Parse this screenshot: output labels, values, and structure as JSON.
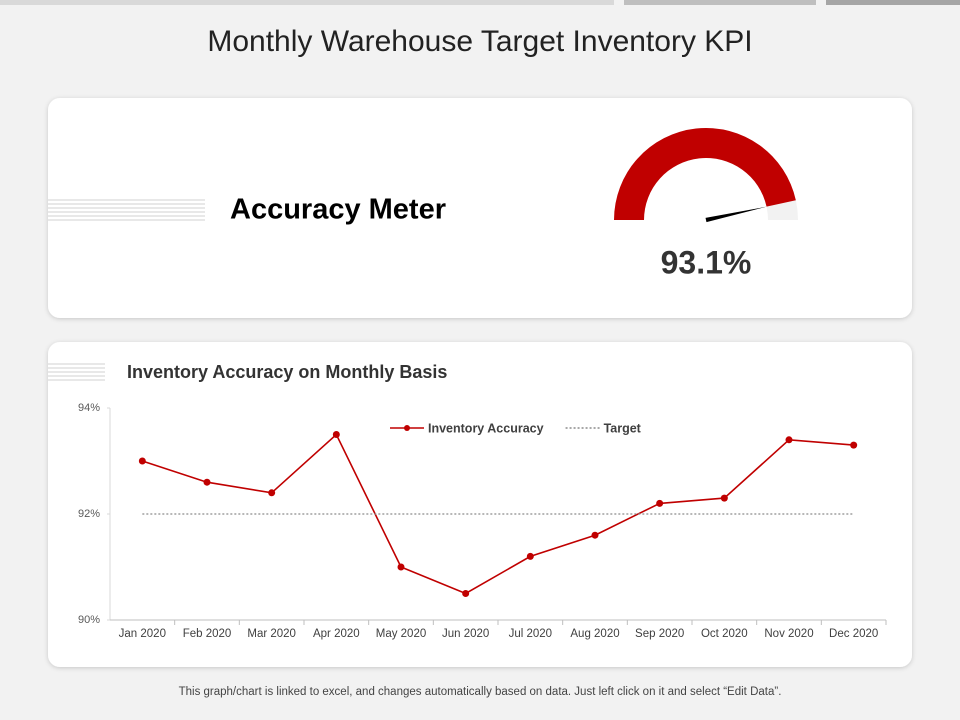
{
  "title": "Monthly Warehouse Target Inventory KPI",
  "footer": "This graph/chart is linked to excel, and changes automatically based on data. Just left click on it and select “Edit Data”.",
  "chart_data": [
    {
      "type": "gauge",
      "title": "Accuracy Meter",
      "values": [
        93.1
      ],
      "value_labels": [
        "93.1%"
      ],
      "ylim": [
        0,
        100
      ],
      "color": "#c00000",
      "track_color": "#f2f2f2",
      "needle_color": "#000000"
    },
    {
      "type": "line",
      "title": "Inventory Accuracy on Monthly Basis",
      "categories": [
        "Jan 2020",
        "Feb 2020",
        "Mar 2020",
        "Apr 2020",
        "May 2020",
        "Jun 2020",
        "Jul 2020",
        "Aug 2020",
        "Sep 2020",
        "Oct 2020",
        "Nov 2020",
        "Dec 2020"
      ],
      "series": [
        {
          "name": "Inventory Accuracy",
          "color": "#c00000",
          "style": "solid",
          "markers": true,
          "values": [
            93.0,
            92.6,
            92.4,
            93.5,
            91.0,
            90.5,
            91.2,
            91.6,
            92.2,
            92.3,
            93.4,
            93.3
          ]
        },
        {
          "name": "Target",
          "color": "#8c8c8c",
          "style": "dotted",
          "markers": false,
          "values": [
            92,
            92,
            92,
            92,
            92,
            92,
            92,
            92,
            92,
            92,
            92,
            92
          ]
        }
      ],
      "ylim": [
        90,
        94
      ],
      "yticks": [
        {
          "value": 90,
          "label": "90%"
        },
        {
          "value": 92,
          "label": "92%"
        },
        {
          "value": 94,
          "label": "94%"
        }
      ],
      "grid": false,
      "legend": "top"
    }
  ]
}
